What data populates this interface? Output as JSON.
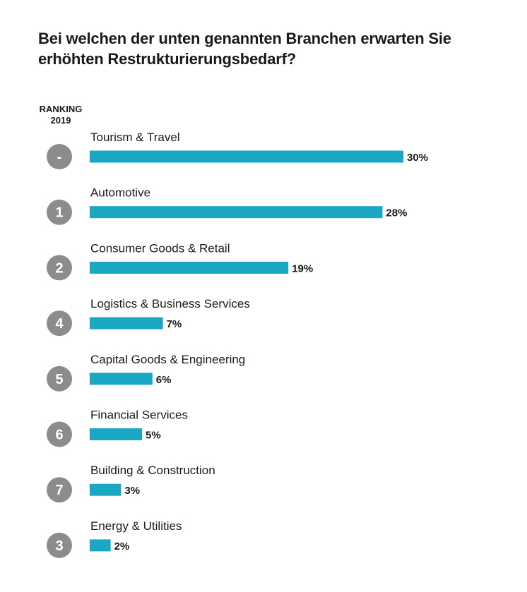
{
  "title_line1": "Bei welchen der unten genannten Branchen erwarten Sie",
  "title_line2": "erhöhten Restrukturierungsbedarf?",
  "ranking_header_line1": "RANKING",
  "ranking_header_line2": "2019",
  "colors": {
    "bar": "#1aa7c4",
    "rank_circle": "#8c8c8c"
  },
  "chart_data": {
    "type": "bar",
    "orientation": "horizontal",
    "title": "Bei welchen der unten genannten Branchen erwarten Sie erhöhten Restrukturierungsbedarf?",
    "categories": [
      "Tourism & Travel",
      "Automotive",
      "Consumer Goods & Retail",
      "Logistics & Business Services",
      "Capital Goods & Engineering",
      "Financial Services",
      "Building & Construction",
      "Energy & Utilities"
    ],
    "values": [
      30,
      28,
      19,
      7,
      6,
      5,
      3,
      2
    ],
    "value_labels": [
      "30%",
      "28%",
      "19%",
      "7%",
      "6%",
      "5%",
      "3%",
      "2%"
    ],
    "ranking_2019": [
      "-",
      "1",
      "2",
      "4",
      "5",
      "6",
      "7",
      "3"
    ],
    "unit": "%",
    "xlim": [
      0,
      30
    ]
  }
}
